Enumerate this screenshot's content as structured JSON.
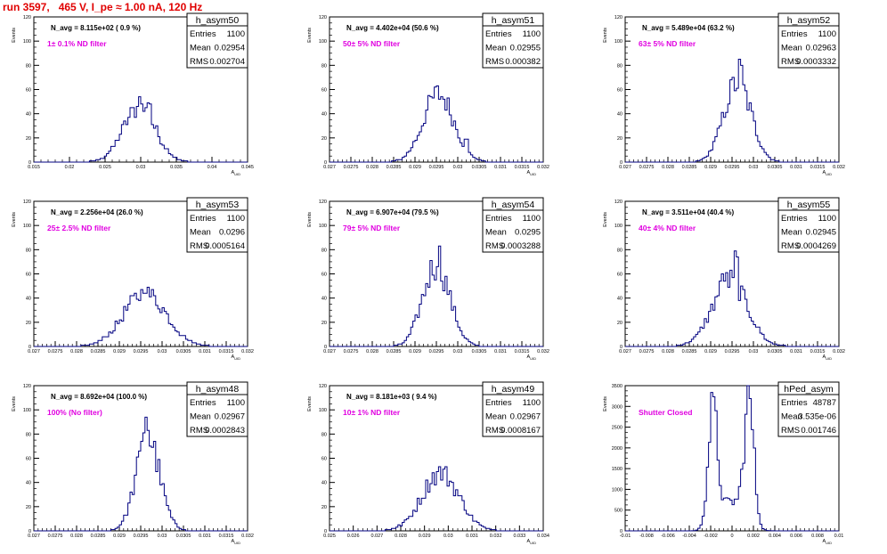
{
  "run_title": "run 3597,   465 V, I_pe ≈ 1.00 nA, 120 Hz",
  "colors": {
    "title": "#e00000",
    "filter_label": "#e000e0",
    "histogram": "#000080",
    "frame": "#000000"
  },
  "stats_labels": {
    "entries": "Entries",
    "mean": "Mean",
    "rms": "RMS"
  },
  "chart_data": [
    {
      "type": "bar",
      "name": "h_asym50",
      "ylabel": "Events",
      "xlabel": "A_UID",
      "navg": "N_avg = 8.115e+02 ( 0.9 %)",
      "filter": "1± 0.1% ND filter",
      "entries": "1100",
      "mean": "0.02954",
      "rms": "0.002704",
      "xlim": [
        0.015,
        0.045
      ],
      "ylim": [
        0,
        120
      ],
      "xticks": [
        "0.015",
        "0.02",
        "0.025",
        "0.03",
        "0.035",
        "0.04",
        "0.045"
      ],
      "yticks": [
        "0",
        "20",
        "40",
        "60",
        "80",
        "100",
        "120"
      ],
      "peaks": [
        {
          "center": 0.0298,
          "sigma": 0.0023,
          "height": 45
        }
      ],
      "spikes": [
        {
          "x": 0.0298,
          "h": 16
        },
        {
          "x": 0.0312,
          "h": 14
        }
      ]
    },
    {
      "type": "bar",
      "name": "h_asym51",
      "ylabel": "Events",
      "xlabel": "A_UID",
      "navg": "N_avg = 4.402e+04 (50.6 %)",
      "filter": "50± 5% ND filter",
      "entries": "1100",
      "mean": "0.02955",
      "rms": "0.000382",
      "xlim": [
        0.027,
        0.032
      ],
      "ylim": [
        0,
        120
      ],
      "xticks": [
        "0.027",
        "0.0275",
        "0.028",
        "0.0285",
        "0.029",
        "0.0295",
        "0.03",
        "0.0305",
        "0.031",
        "0.0315",
        "0.032"
      ],
      "yticks": [
        "0",
        "20",
        "40",
        "60",
        "80",
        "100",
        "120"
      ],
      "peaks": [
        {
          "center": 0.02955,
          "sigma": 0.00036,
          "height": 56
        }
      ],
      "spikes": [
        {
          "x": 0.0302,
          "h": 8
        }
      ]
    },
    {
      "type": "bar",
      "name": "h_asym52",
      "ylabel": "Events",
      "xlabel": "A_UID",
      "navg": "N_avg = 5.489e+04 (63.2 %)",
      "filter": "63± 5% ND filter",
      "entries": "1100",
      "mean": "0.02963",
      "rms": "0.0003332",
      "xlim": [
        0.027,
        0.032
      ],
      "ylim": [
        0,
        120
      ],
      "xticks": [
        "0.027",
        "0.0275",
        "0.028",
        "0.0285",
        "0.029",
        "0.0295",
        "0.03",
        "0.0305",
        "0.031",
        "0.0315",
        "0.032"
      ],
      "yticks": [
        "0",
        "20",
        "40",
        "60",
        "80",
        "100",
        "120"
      ],
      "peaks": [
        {
          "center": 0.02963,
          "sigma": 0.00032,
          "height": 66
        }
      ],
      "spikes": [
        {
          "x": 0.0297,
          "h": 10
        }
      ]
    },
    {
      "type": "bar",
      "name": "h_asym53",
      "ylabel": "Events",
      "xlabel": "A_UID",
      "navg": "N_avg = 2.256e+04 (26.0 %)",
      "filter": "25± 2.5% ND filter",
      "entries": "1100",
      "mean": "0.0296",
      "rms": "0.0005164",
      "xlim": [
        0.027,
        0.032
      ],
      "ylim": [
        0,
        120
      ],
      "xticks": [
        "0.027",
        "0.0275",
        "0.028",
        "0.0285",
        "0.029",
        "0.0295",
        "0.03",
        "0.0305",
        "0.031",
        "0.0315",
        "0.032"
      ],
      "yticks": [
        "0",
        "20",
        "40",
        "60",
        "80",
        "100",
        "120"
      ],
      "peaks": [
        {
          "center": 0.0296,
          "sigma": 0.0005,
          "height": 44
        }
      ],
      "spikes": [
        {
          "x": 0.0296,
          "h": 8
        }
      ]
    },
    {
      "type": "bar",
      "name": "h_asym54",
      "ylabel": "Events",
      "xlabel": "A_UID",
      "navg": "N_avg = 6.907e+04 (79.5 %)",
      "filter": "79± 5% ND filter",
      "entries": "1100",
      "mean": "0.0295",
      "rms": "0.0003288",
      "xlim": [
        0.027,
        0.032
      ],
      "ylim": [
        0,
        120
      ],
      "xticks": [
        "0.027",
        "0.0275",
        "0.028",
        "0.0285",
        "0.029",
        "0.0295",
        "0.03",
        "0.0305",
        "0.031",
        "0.0315",
        "0.032"
      ],
      "yticks": [
        "0",
        "20",
        "40",
        "60",
        "80",
        "100",
        "120"
      ],
      "peaks": [
        {
          "center": 0.0295,
          "sigma": 0.00032,
          "height": 67
        }
      ],
      "spikes": [
        {
          "x": 0.02955,
          "h": 9
        }
      ]
    },
    {
      "type": "bar",
      "name": "h_asym55",
      "ylabel": "Events",
      "xlabel": "A_UID",
      "navg": "N_avg = 3.511e+04 (40.4 %)",
      "filter": "40± 4% ND filter",
      "entries": "1100",
      "mean": "0.02945",
      "rms": "0.0004269",
      "xlim": [
        0.027,
        0.032
      ],
      "ylim": [
        0,
        120
      ],
      "xticks": [
        "0.027",
        "0.0275",
        "0.028",
        "0.0285",
        "0.029",
        "0.0295",
        "0.03",
        "0.0305",
        "0.031",
        "0.0315",
        "0.032"
      ],
      "yticks": [
        "0",
        "20",
        "40",
        "60",
        "80",
        "100",
        "120"
      ],
      "peaks": [
        {
          "center": 0.02945,
          "sigma": 0.00041,
          "height": 54
        }
      ],
      "spikes": [
        {
          "x": 0.0296,
          "h": 20
        },
        {
          "x": 0.0293,
          "h": 8
        }
      ]
    },
    {
      "type": "bar",
      "name": "h_asym48",
      "ylabel": "Events",
      "xlabel": "A_UID",
      "navg": "N_avg = 8.692e+04 (100.0 %)",
      "filter": "100% (No filter)",
      "entries": "1100",
      "mean": "0.02967",
      "rms": "0.0002843",
      "xlim": [
        0.027,
        0.032
      ],
      "ylim": [
        0,
        120
      ],
      "xticks": [
        "0.027",
        "0.0275",
        "0.028",
        "0.0285",
        "0.029",
        "0.0295",
        "0.03",
        "0.0305",
        "0.031",
        "0.0315",
        "0.032"
      ],
      "yticks": [
        "0",
        "20",
        "40",
        "60",
        "80",
        "100",
        "120"
      ],
      "peaks": [
        {
          "center": 0.02967,
          "sigma": 0.00028,
          "height": 76
        }
      ],
      "spikes": [
        {
          "x": 0.0296,
          "h": 14
        },
        {
          "x": 0.02965,
          "h": 10
        }
      ]
    },
    {
      "type": "bar",
      "name": "h_asym49",
      "ylabel": "Events",
      "xlabel": "A_UID",
      "navg": "N_avg = 8.181e+03 ( 9.4 %)",
      "filter": "10± 1% ND filter",
      "entries": "1100",
      "mean": "0.02967",
      "rms": "0.0008167",
      "xlim": [
        0.025,
        0.034
      ],
      "ylim": [
        0,
        120
      ],
      "xticks": [
        "0.025",
        "0.026",
        "0.027",
        "0.028",
        "0.029",
        "0.03",
        "0.031",
        "0.032",
        "0.033",
        "0.034"
      ],
      "yticks": [
        "0",
        "20",
        "40",
        "60",
        "80",
        "100",
        "120"
      ],
      "peaks": [
        {
          "center": 0.02967,
          "sigma": 0.00078,
          "height": 48
        }
      ],
      "spikes": []
    },
    {
      "type": "bar",
      "name": "hPed_asym",
      "ylabel": "Events",
      "xlabel": "A_UID",
      "navg": "",
      "filter": "Shutter Closed",
      "entries": "48787",
      "mean": "3.535e-06",
      "rms": "0.001746",
      "xlim": [
        -0.01,
        0.01
      ],
      "ylim": [
        0,
        3500
      ],
      "xticks": [
        "-0.01",
        "-0.008",
        "-0.006",
        "-0.004",
        "-0.002",
        "0",
        "0.002",
        "0.004",
        "0.006",
        "0.008",
        "0.01"
      ],
      "yticks": [
        "0",
        "500",
        "1000",
        "1500",
        "2000",
        "2500",
        "3000",
        "3500"
      ],
      "peaks": [
        {
          "center": -0.0018,
          "sigma": 0.00045,
          "height": 2750
        },
        {
          "center": 0.0016,
          "sigma": 0.00045,
          "height": 2950
        },
        {
          "center": 0.0,
          "sigma": 0.0011,
          "height": 700
        }
      ],
      "spikes": [
        {
          "x": 0.0015,
          "h": 400
        }
      ]
    }
  ]
}
